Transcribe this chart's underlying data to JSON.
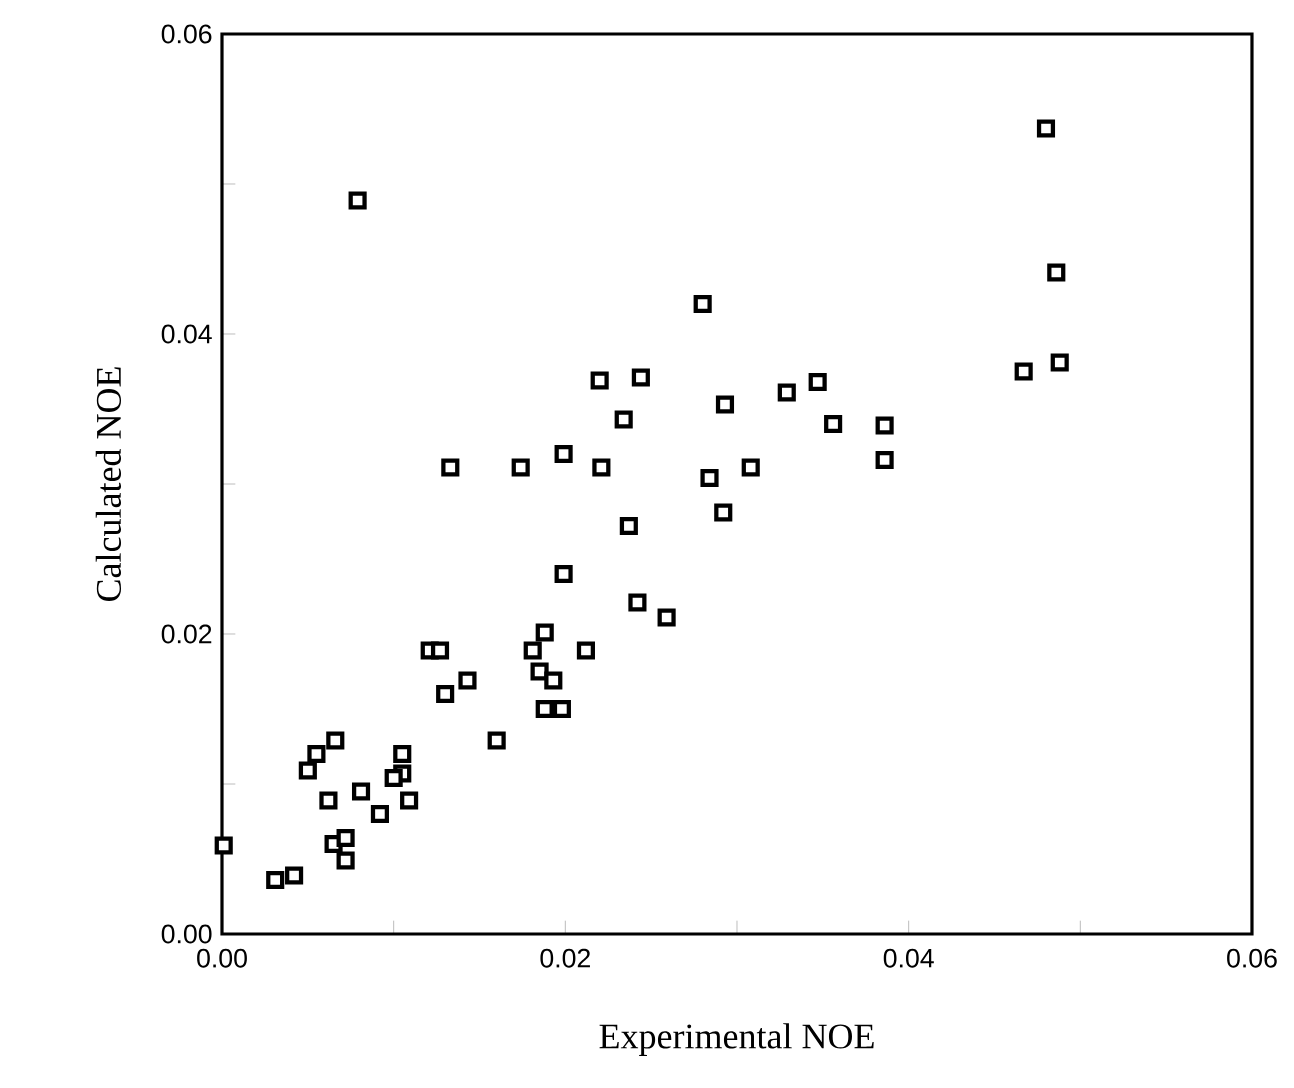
{
  "chart_data": {
    "type": "scatter",
    "xlabel": "Experimental NOE",
    "ylabel": "Calculated NOE",
    "xlim": [
      0,
      0.06
    ],
    "ylim": [
      0,
      0.06
    ],
    "xticks": [
      {
        "value": 0,
        "label": "0.00"
      },
      {
        "value": 0.01,
        "label": null
      },
      {
        "value": 0.02,
        "label": "0.02"
      },
      {
        "value": 0.03,
        "label": null
      },
      {
        "value": 0.04,
        "label": "0.04"
      },
      {
        "value": 0.05,
        "label": null
      },
      {
        "value": 0.06,
        "label": "0.06"
      }
    ],
    "yticks": [
      {
        "value": 0,
        "label": "0.00"
      },
      {
        "value": 0.01,
        "label": null
      },
      {
        "value": 0.02,
        "label": "0.02"
      },
      {
        "value": 0.03,
        "label": null
      },
      {
        "value": 0.04,
        "label": "0.04"
      },
      {
        "value": 0.05,
        "label": null
      },
      {
        "value": 0.06,
        "label": "0.06"
      }
    ],
    "marker": "square",
    "series": [
      {
        "color": "#000000",
        "x": [
          0.0079,
          0.028,
          0.022,
          0.0244,
          0.0234,
          0.0133,
          0.0174,
          0.0199,
          0.0221,
          0.0284,
          0.048,
          0.0486,
          0.0293,
          0.0329,
          0.0347,
          0.0356,
          0.0386,
          0.0386,
          0.0467,
          0.0488,
          0.0308,
          0.0292,
          0.0237,
          0.0199,
          0.0242,
          0.0259,
          0.0188,
          0.0181,
          0.0212,
          0.0121,
          0.0127,
          0.0143,
          0.013,
          0.0185,
          0.0193,
          0.0188,
          0.0198,
          0.016,
          0.0066,
          0.0055,
          0.005,
          0.0105,
          0.0105,
          0.01,
          0.0062,
          0.0081,
          0.0109,
          0.0092,
          0.0065,
          0.0072,
          0.0072,
          0.0001,
          0.0031,
          0.0042
        ],
        "values": [
          0.0489,
          0.042,
          0.0369,
          0.0371,
          0.0343,
          0.0311,
          0.0311,
          0.032,
          0.0311,
          0.0304,
          0.0537,
          0.0441,
          0.0353,
          0.0361,
          0.0368,
          0.034,
          0.0339,
          0.0316,
          0.0375,
          0.0381,
          0.0311,
          0.0281,
          0.0272,
          0.024,
          0.0221,
          0.0211,
          0.0201,
          0.0189,
          0.0189,
          0.0189,
          0.0189,
          0.0169,
          0.016,
          0.0175,
          0.0169,
          0.015,
          0.015,
          0.0129,
          0.0129,
          0.012,
          0.0109,
          0.012,
          0.0107,
          0.0104,
          0.0089,
          0.0095,
          0.0089,
          0.008,
          0.006,
          0.0064,
          0.0049,
          0.0059,
          0.0036,
          0.0039
        ]
      }
    ]
  }
}
